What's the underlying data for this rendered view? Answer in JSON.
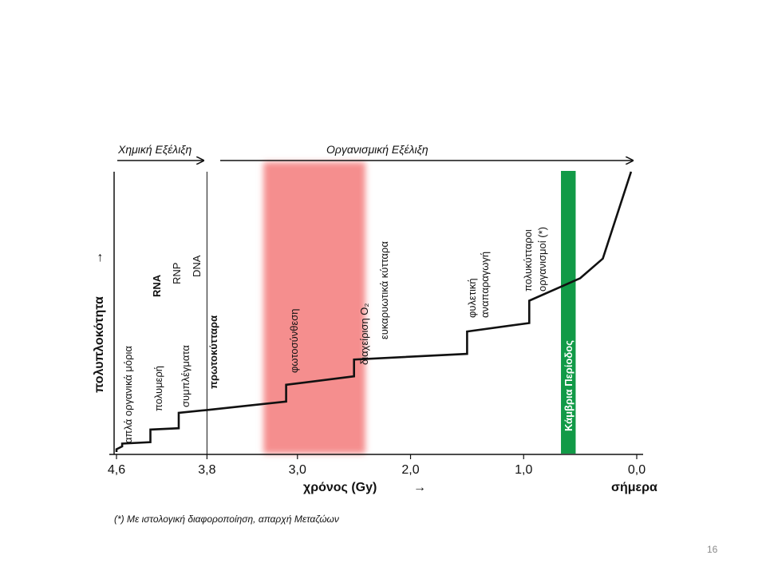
{
  "header": {
    "chemical": "Χημική Εξέλιξη",
    "organismal": "Οργανισμική Εξέλιξη"
  },
  "chart_data": {
    "type": "line",
    "xlabel": "χρόνος  (Gy)",
    "xlabel_arrow": "→",
    "ylabel": "πολυπλοκότητα",
    "ylabel_arrow": "→",
    "x_reversed": true,
    "xlim": [
      4.6,
      0.0
    ],
    "x_ticks": [
      "4,6",
      "3,8",
      "3,0",
      "2,0",
      "1,0",
      "0,0"
    ],
    "x_tick_values": [
      4.6,
      3.8,
      3.0,
      2.0,
      1.0,
      0.0
    ],
    "x_today_label": "σήμερα",
    "ylim": [
      0,
      100
    ],
    "series": [
      {
        "x": [
          4.6,
          4.6,
          4.55,
          4.55,
          4.3,
          4.3,
          4.05,
          4.05,
          3.8,
          3.1,
          3.1,
          2.5,
          2.5,
          1.5,
          1.5,
          0.95,
          0.95,
          0.5,
          0.3,
          0.05
        ],
        "y": [
          0,
          1,
          2,
          3,
          3.5,
          8,
          8.5,
          14,
          15,
          18,
          24,
          27,
          33,
          35,
          43,
          46,
          54,
          62,
          69,
          100
        ]
      }
    ],
    "highlights": [
      {
        "label": "",
        "from": 3.3,
        "to": 2.4,
        "color": "#f58e8e"
      },
      {
        "label": "Κάμβρια Περίοδος",
        "from": 0.67,
        "to": 0.54,
        "color": "#119a47"
      }
    ],
    "divider_x": 3.8,
    "annotations": [
      {
        "text": "απλά οργανικά μόρια",
        "bold": false
      },
      {
        "text": "πολυμερή",
        "bold": false
      },
      {
        "text": "συμπλέγματα",
        "bold": false
      },
      {
        "text": "RNA",
        "bold": true
      },
      {
        "text": "RNP",
        "bold": false
      },
      {
        "text": "DNA",
        "bold": false
      },
      {
        "text": "πρωτοκύτταρα",
        "bold": true
      },
      {
        "text": "φωτοσύνθεση",
        "bold": false
      },
      {
        "text": "διαχείριση O₂",
        "bold": false
      },
      {
        "text": "ευκαρυωτικά κύτταρα",
        "bold": false
      },
      {
        "text": "φυλετική",
        "bold": false
      },
      {
        "text": "αναπαραγωγή",
        "bold": false
      },
      {
        "text": "πολυκύτταροι",
        "bold": false
      },
      {
        "text": "οργανισμοί (*)",
        "bold": false
      }
    ]
  },
  "footnote": "(*) Με ιστολογική διαφοροποίηση, απαρχή Μεταζώων",
  "page_number": "16"
}
